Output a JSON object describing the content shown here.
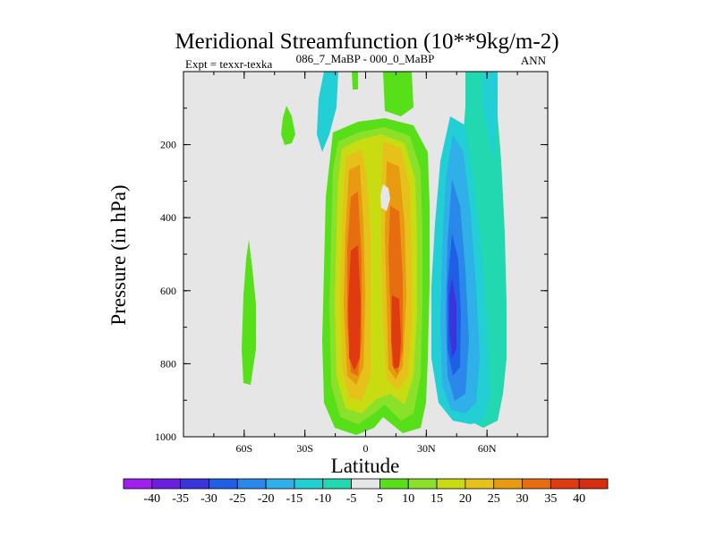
{
  "chart_data": {
    "type": "contour",
    "title": "Meridional Streamfunction (10**9kg/m-2)",
    "left_label": "Expt = texxr-texka",
    "center_label": "086_7_MaBP - 000_0_MaBP",
    "right_label": "ANN",
    "xlabel": "Latitude",
    "ylabel": "Pressure (in hPa)",
    "xlim": [
      -90,
      90
    ],
    "ylim": [
      1000,
      0
    ],
    "x_ticks": [
      {
        "value": -60,
        "label": "60S"
      },
      {
        "value": -30,
        "label": "30S"
      },
      {
        "value": 0,
        "label": "0"
      },
      {
        "value": 30,
        "label": "30N"
      },
      {
        "value": 60,
        "label": "60N"
      }
    ],
    "y_ticks": [
      {
        "value": 200,
        "label": "200"
      },
      {
        "value": 400,
        "label": "400"
      },
      {
        "value": 600,
        "label": "600"
      },
      {
        "value": 800,
        "label": "800"
      },
      {
        "value": 1000,
        "label": "1000"
      }
    ],
    "colorbar": {
      "labels": [
        "-40",
        "-35",
        "-30",
        "-25",
        "-20",
        "-15",
        "-10",
        "-5",
        "5",
        "10",
        "15",
        "20",
        "25",
        "30",
        "35",
        "40"
      ],
      "colors": [
        "#a020f0",
        "#6a1fe0",
        "#3a34df",
        "#1f5fe6",
        "#2a88ea",
        "#2fb0e8",
        "#22cfd5",
        "#22d8b0",
        "#e6e6e6",
        "#57e01a",
        "#8be02a",
        "#c9dc12",
        "#e6c11a",
        "#e89a10",
        "#e66d10",
        "#e03a10",
        "#d82e10"
      ]
    },
    "features": [
      {
        "name": "NH negative cell",
        "level": -35,
        "lat_center": 40,
        "p_center": 700
      },
      {
        "name": "SH positive cell",
        "level": 40,
        "lat_center": -5,
        "p_center": 700
      },
      {
        "name": "Equatorial positive cell",
        "level": 40,
        "lat_center": 17,
        "p_center": 800
      }
    ]
  }
}
